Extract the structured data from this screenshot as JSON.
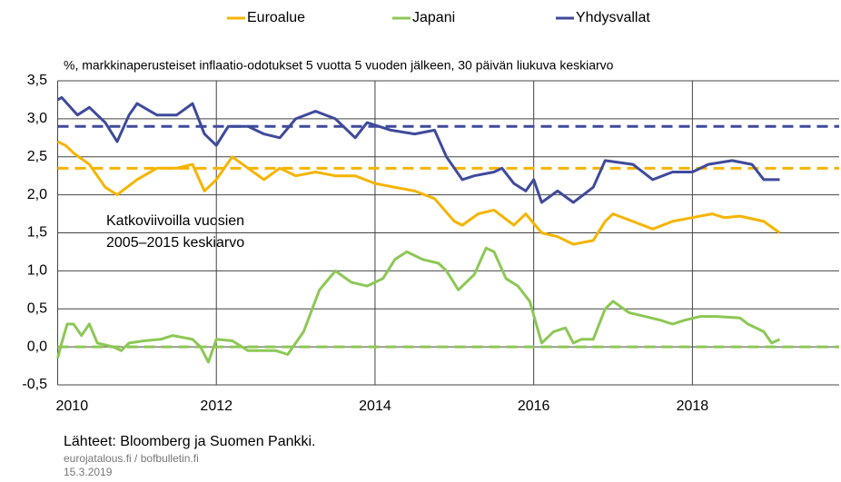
{
  "chart_data": {
    "type": "line",
    "subtitle": "%, markkinaperusteiset inflaatio-odotukset 5 vuotta 5 vuoden jälkeen, 30 päivän liukuva keskiarvo",
    "annotation": [
      "Katkoviivoilla vuosien",
      "2005–2015 keskiarvo"
    ],
    "source": "Lähteet: Bloomberg ja Suomen Pankki.",
    "site": "eurojatalous.fi / bofbulletin.fi",
    "date": "15.3.2019",
    "xlim": [
      2010,
      2019.85
    ],
    "xticks": [
      2010,
      2012,
      2014,
      2016,
      2018
    ],
    "ylim": [
      -0.5,
      3.5
    ],
    "yticks": [
      {
        "value": -0.5,
        "label": "-0,5"
      },
      {
        "value": 0,
        "label": "0,0"
      },
      {
        "value": 0.5,
        "label": "0,5"
      },
      {
        "value": 1,
        "label": "1,0"
      },
      {
        "value": 1.5,
        "label": "1,5"
      },
      {
        "value": 2,
        "label": "2,0"
      },
      {
        "value": 2.5,
        "label": "2,5"
      },
      {
        "value": 3,
        "label": "3,0"
      },
      {
        "value": 3.5,
        "label": "3,5"
      }
    ],
    "grid": true,
    "legend": "top",
    "series": [
      {
        "name": "Euroalue",
        "color": "#f5b400",
        "average": 2.35,
        "x": [
          2010.0,
          2010.1,
          2010.2,
          2010.4,
          2010.6,
          2010.75,
          2011.0,
          2011.25,
          2011.5,
          2011.7,
          2011.85,
          2012.0,
          2012.2,
          2012.4,
          2012.6,
          2012.8,
          2013.0,
          2013.25,
          2013.5,
          2013.75,
          2014.0,
          2014.25,
          2014.5,
          2014.75,
          2015.0,
          2015.1,
          2015.3,
          2015.5,
          2015.75,
          2015.9,
          2016.1,
          2016.3,
          2016.5,
          2016.75,
          2016.9,
          2017.0,
          2017.25,
          2017.5,
          2017.75,
          2018.0,
          2018.25,
          2018.4,
          2018.6,
          2018.9,
          2019.1
        ],
        "values": [
          2.7,
          2.65,
          2.55,
          2.4,
          2.1,
          2.0,
          2.2,
          2.35,
          2.35,
          2.4,
          2.05,
          2.2,
          2.5,
          2.35,
          2.2,
          2.35,
          2.25,
          2.3,
          2.25,
          2.25,
          2.15,
          2.1,
          2.05,
          1.95,
          1.65,
          1.6,
          1.75,
          1.8,
          1.6,
          1.75,
          1.5,
          1.45,
          1.35,
          1.4,
          1.65,
          1.75,
          1.65,
          1.55,
          1.65,
          1.7,
          1.75,
          1.7,
          1.72,
          1.65,
          1.5
        ]
      },
      {
        "name": "Japani",
        "color": "#8dc755",
        "average": 0,
        "x": [
          2010.0,
          2010.05,
          2010.12,
          2010.2,
          2010.3,
          2010.4,
          2010.5,
          2010.7,
          2010.8,
          2010.9,
          2011.1,
          2011.3,
          2011.45,
          2011.7,
          2011.8,
          2011.9,
          2012.0,
          2012.2,
          2012.4,
          2012.6,
          2012.75,
          2012.9,
          2013.1,
          2013.3,
          2013.5,
          2013.7,
          2013.9,
          2014.1,
          2014.25,
          2014.4,
          2014.6,
          2014.8,
          2014.9,
          2015.05,
          2015.25,
          2015.4,
          2015.5,
          2015.65,
          2015.8,
          2015.95,
          2016.1,
          2016.25,
          2016.4,
          2016.5,
          2016.6,
          2016.75,
          2016.9,
          2017.0,
          2017.2,
          2017.4,
          2017.6,
          2017.75,
          2017.9,
          2018.1,
          2018.3,
          2018.6,
          2018.7,
          2018.9,
          2019.0,
          2019.1
        ],
        "values": [
          -0.15,
          0.05,
          0.3,
          0.3,
          0.15,
          0.3,
          0.05,
          0.0,
          -0.05,
          0.05,
          0.08,
          0.1,
          0.15,
          0.1,
          0.0,
          -0.2,
          0.1,
          0.08,
          -0.05,
          -0.05,
          -0.05,
          -0.1,
          0.2,
          0.75,
          1.0,
          0.85,
          0.8,
          0.9,
          1.15,
          1.25,
          1.15,
          1.1,
          1.0,
          0.75,
          0.95,
          1.3,
          1.25,
          0.9,
          0.8,
          0.6,
          0.05,
          0.2,
          0.25,
          0.05,
          0.1,
          0.1,
          0.5,
          0.6,
          0.45,
          0.4,
          0.35,
          0.3,
          0.35,
          0.4,
          0.4,
          0.38,
          0.3,
          0.2,
          0.05,
          0.1
        ]
      },
      {
        "name": "Yhdysvallat",
        "color": "#3f4a9a",
        "average": 2.9,
        "x": [
          2010.0,
          2010.05,
          2010.25,
          2010.4,
          2010.6,
          2010.75,
          2010.9,
          2011.0,
          2011.25,
          2011.5,
          2011.7,
          2011.85,
          2012.0,
          2012.15,
          2012.4,
          2012.6,
          2012.8,
          2013.0,
          2013.25,
          2013.5,
          2013.75,
          2013.9,
          2014.2,
          2014.5,
          2014.75,
          2014.9,
          2015.1,
          2015.25,
          2015.5,
          2015.6,
          2015.75,
          2015.9,
          2016.0,
          2016.1,
          2016.3,
          2016.5,
          2016.75,
          2016.9,
          2017.25,
          2017.5,
          2017.75,
          2018.0,
          2018.2,
          2018.5,
          2018.75,
          2018.9,
          2019.1
        ],
        "values": [
          3.25,
          3.28,
          3.05,
          3.15,
          2.95,
          2.7,
          3.05,
          3.2,
          3.05,
          3.05,
          3.2,
          2.8,
          2.65,
          2.9,
          2.9,
          2.8,
          2.75,
          3.0,
          3.1,
          3.0,
          2.75,
          2.95,
          2.85,
          2.8,
          2.85,
          2.5,
          2.2,
          2.25,
          2.3,
          2.35,
          2.15,
          2.05,
          2.2,
          1.9,
          2.05,
          1.9,
          2.1,
          2.45,
          2.4,
          2.2,
          2.3,
          2.3,
          2.4,
          2.45,
          2.4,
          2.2,
          2.2
        ]
      }
    ]
  }
}
